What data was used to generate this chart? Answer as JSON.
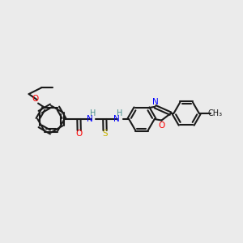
{
  "background_color": "#ebebeb",
  "bond_color": "#1a1a1a",
  "bond_lw": 1.5,
  "atom_colors": {
    "O": "#ff0000",
    "N": "#0000ff",
    "S": "#c8b400",
    "H": "#4a9090",
    "C": "#1a1a1a"
  },
  "font_size": 7.5,
  "fig_size": [
    3.0,
    3.0
  ],
  "dpi": 100
}
